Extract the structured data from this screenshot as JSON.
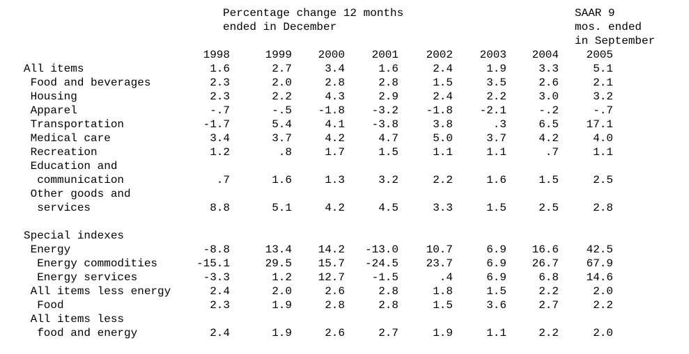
{
  "header": {
    "group_line1": "Percentage change 12 months",
    "group_line2": "ended in December",
    "saar_line1": "SAAR 9",
    "saar_line2": "mos. ended",
    "saar_line3": "in September"
  },
  "years": [
    "1998",
    "1999",
    "2000",
    "2001",
    "2002",
    "2003",
    "2004",
    "2005"
  ],
  "rows": [
    {
      "label": "All items",
      "values": [
        "1.6",
        "2.7",
        "3.4",
        "1.6",
        "2.4",
        "1.9",
        "3.3",
        "5.1"
      ]
    },
    {
      "label": " Food and beverages",
      "values": [
        "2.3",
        "2.0",
        "2.8",
        "2.8",
        "1.5",
        "3.5",
        "2.6",
        "2.1"
      ]
    },
    {
      "label": " Housing",
      "values": [
        "2.3",
        "2.2",
        "4.3",
        "2.9",
        "2.4",
        "2.2",
        "3.0",
        "3.2"
      ]
    },
    {
      "label": " Apparel",
      "values": [
        "-.7",
        "-.5",
        "-1.8",
        "-3.2",
        "-1.8",
        "-2.1",
        "-.2",
        "-.7"
      ]
    },
    {
      "label": " Transportation",
      "values": [
        "-1.7",
        "5.4",
        "4.1",
        "-3.8",
        "3.8",
        ".3",
        "6.5",
        "17.1"
      ]
    },
    {
      "label": " Medical care",
      "values": [
        "3.4",
        "3.7",
        "4.2",
        "4.7",
        "5.0",
        "3.7",
        "4.2",
        "4.0"
      ]
    },
    {
      "label": " Recreation",
      "values": [
        "1.2",
        ".8",
        "1.7",
        "1.5",
        "1.1",
        "1.1",
        ".7",
        "1.1"
      ]
    },
    {
      "label": " Education and",
      "values": []
    },
    {
      "label": "  communication",
      "values": [
        ".7",
        "1.6",
        "1.3",
        "3.2",
        "2.2",
        "1.6",
        "1.5",
        "2.5"
      ]
    },
    {
      "label": " Other goods and",
      "values": []
    },
    {
      "label": "  services",
      "values": [
        "8.8",
        "5.1",
        "4.2",
        "4.5",
        "3.3",
        "1.5",
        "2.5",
        "2.8"
      ]
    },
    {
      "label": "",
      "values": []
    },
    {
      "label": "Special indexes",
      "values": []
    },
    {
      "label": " Energy",
      "values": [
        "-8.8",
        "13.4",
        "14.2",
        "-13.0",
        "10.7",
        "6.9",
        "16.6",
        "42.5"
      ]
    },
    {
      "label": "  Energy commodities",
      "values": [
        "-15.1",
        "29.5",
        "15.7",
        "-24.5",
        "23.7",
        "6.9",
        "26.7",
        "67.9"
      ]
    },
    {
      "label": "  Energy services",
      "values": [
        "-3.3",
        "1.2",
        "12.7",
        "-1.5",
        ".4",
        "6.9",
        "6.8",
        "14.6"
      ]
    },
    {
      "label": " All items less energy",
      "values": [
        "2.4",
        "2.0",
        "2.6",
        "2.8",
        "1.8",
        "1.5",
        "2.2",
        "2.0"
      ]
    },
    {
      "label": "  Food",
      "values": [
        "2.3",
        "1.9",
        "2.8",
        "2.8",
        "1.5",
        "3.6",
        "2.7",
        "2.2"
      ]
    },
    {
      "label": " All items less",
      "values": []
    },
    {
      "label": "  food and energy",
      "values": [
        "2.4",
        "1.9",
        "2.6",
        "2.7",
        "1.9",
        "1.1",
        "2.2",
        "2.0"
      ]
    }
  ]
}
